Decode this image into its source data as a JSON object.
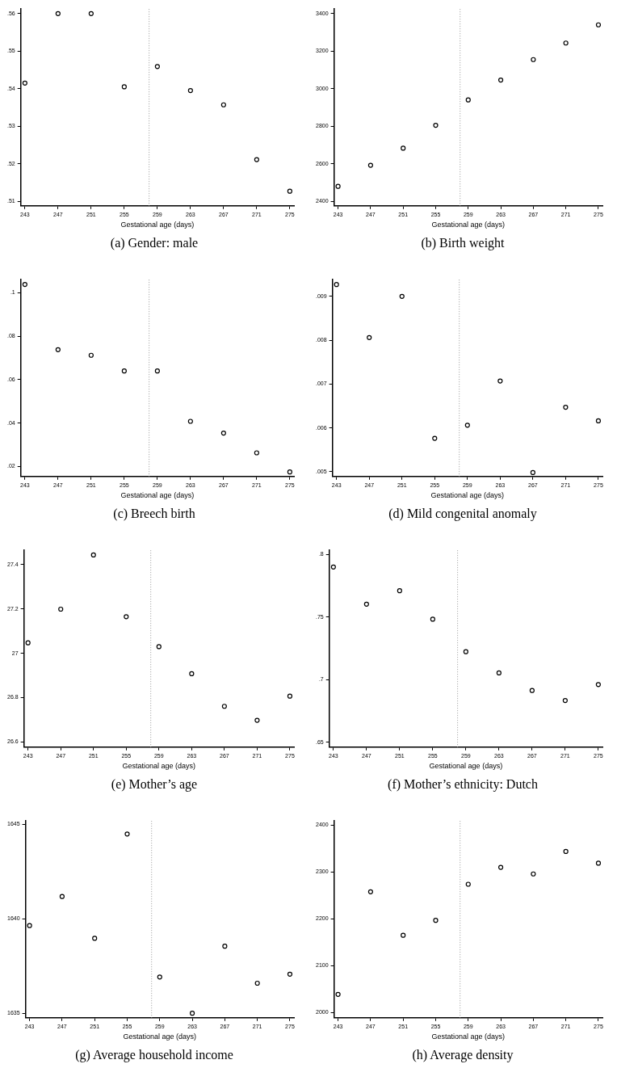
{
  "chart_data": [
    {
      "type": "scatter",
      "title": "(a) Gender: male",
      "xlabel": "Gestational age (days)",
      "x": [
        243,
        247,
        251,
        255,
        259,
        263,
        267,
        271,
        275
      ],
      "values": [
        0.5415,
        0.56,
        0.56,
        0.5405,
        0.5459,
        0.5395,
        0.5357,
        0.5211,
        0.5127
      ],
      "color": "#000000",
      "marker": "circle",
      "grid": false,
      "xlim": [
        242.5,
        275.5
      ],
      "xticks": [
        243,
        247,
        251,
        255,
        259,
        263,
        267,
        271,
        275
      ],
      "ylim": [
        0.5088,
        0.5612
      ],
      "yticks": [
        {
          "value": 0.51,
          "label": ".51"
        },
        {
          "value": 0.52,
          "label": ".52"
        },
        {
          "value": 0.53,
          "label": ".53"
        },
        {
          "value": 0.54,
          "label": ".54"
        },
        {
          "value": 0.55,
          "label": ".55"
        },
        {
          "value": 0.56,
          "label": ".56"
        }
      ],
      "ref_lines": [
        {
          "axis": "x",
          "value": 258,
          "color": "#999999",
          "line_style": "dotted"
        }
      ]
    },
    {
      "type": "scatter",
      "title": "(b) Birth weight",
      "xlabel": "Gestational age (days)",
      "x": [
        243,
        247,
        251,
        255,
        259,
        263,
        267,
        271,
        275
      ],
      "values": [
        2480,
        2592,
        2683,
        2805,
        2940,
        3046,
        3155,
        3243,
        3340
      ],
      "color": "#000000",
      "marker": "circle",
      "grid": false,
      "xlim": [
        242.5,
        275.5
      ],
      "xticks": [
        243,
        247,
        251,
        255,
        259,
        263,
        267,
        271,
        275
      ],
      "ylim": [
        2376,
        3424
      ],
      "yticks": [
        2400,
        2600,
        2800,
        3000,
        3200,
        3400
      ],
      "ref_lines": [
        {
          "axis": "x",
          "value": 258,
          "color": "#999999",
          "line_style": "dotted"
        }
      ]
    },
    {
      "type": "scatter",
      "title": "(c) Breech birth",
      "xlabel": "Gestational age (days)",
      "x": [
        243,
        247,
        251,
        255,
        259,
        263,
        267,
        271,
        275
      ],
      "values": [
        0.1038,
        0.0738,
        0.0712,
        0.064,
        0.064,
        0.0408,
        0.0354,
        0.0263,
        0.0175
      ],
      "color": "#000000",
      "marker": "circle",
      "grid": false,
      "xlim": [
        242.5,
        275.5
      ],
      "xticks": [
        243,
        247,
        251,
        255,
        259,
        263,
        267,
        271,
        275
      ],
      "ylim": [
        0.0154,
        0.106
      ],
      "yticks": [
        {
          "value": 0.02,
          "label": ".02"
        },
        {
          "value": 0.04,
          "label": ".04"
        },
        {
          "value": 0.06,
          "label": ".06"
        },
        {
          "value": 0.08,
          "label": ".08"
        },
        {
          "value": 0.1,
          "label": ".1"
        }
      ],
      "ref_lines": [
        {
          "axis": "x",
          "value": 258,
          "color": "#999999",
          "line_style": "dotted"
        }
      ]
    },
    {
      "type": "scatter",
      "title": "(d) Mild congenital anomaly",
      "xlabel": "Gestational age (days)",
      "x": [
        243,
        247,
        251,
        255,
        259,
        263,
        267,
        271,
        275
      ],
      "values": [
        0.00927,
        0.00806,
        0.009,
        0.00576,
        0.00606,
        0.00707,
        0.00498,
        0.00647,
        0.00616
      ],
      "color": "#000000",
      "marker": "circle",
      "grid": false,
      "xlim": [
        242.5,
        275.5
      ],
      "xticks": [
        243,
        247,
        251,
        255,
        259,
        263,
        267,
        271,
        275
      ],
      "ylim": [
        0.00489,
        0.00938
      ],
      "yticks": [
        {
          "value": 0.005,
          "label": ".005"
        },
        {
          "value": 0.006,
          "label": ".006"
        },
        {
          "value": 0.007,
          "label": ".007"
        },
        {
          "value": 0.008,
          "label": ".008"
        },
        {
          "value": 0.009,
          "label": ".009"
        }
      ],
      "ref_lines": [
        {
          "axis": "x",
          "value": 258,
          "color": "#999999",
          "line_style": "dotted"
        }
      ]
    },
    {
      "type": "scatter",
      "title": "(e) Mother’s age",
      "xlabel": "Gestational age (days)",
      "x": [
        243,
        247,
        251,
        255,
        259,
        263,
        267,
        271,
        275
      ],
      "values": [
        27.047,
        27.199,
        27.443,
        27.165,
        27.03,
        26.908,
        26.761,
        26.698,
        26.807
      ],
      "color": "#000000",
      "marker": "circle",
      "grid": false,
      "xlim": [
        242.5,
        275.5
      ],
      "xticks": [
        243,
        247,
        251,
        255,
        259,
        263,
        267,
        271,
        275
      ],
      "ylim": [
        26.577,
        27.464
      ],
      "yticks": [
        26.6,
        26.8,
        27,
        27.2,
        27.4
      ],
      "ref_lines": [
        {
          "axis": "x",
          "value": 258,
          "color": "#999999",
          "line_style": "dotted"
        }
      ]
    },
    {
      "type": "scatter",
      "title": "(f) Mother’s ethnicity: Dutch",
      "xlabel": "Gestational age (days)",
      "x": [
        243,
        247,
        251,
        255,
        259,
        263,
        267,
        271,
        275
      ],
      "values": [
        0.79,
        0.7603,
        0.771,
        0.7483,
        0.7223,
        0.7053,
        0.6913,
        0.6833,
        0.696
      ],
      "color": "#000000",
      "marker": "circle",
      "grid": false,
      "xlim": [
        242.5,
        275.5
      ],
      "xticks": [
        243,
        247,
        251,
        255,
        259,
        263,
        267,
        271,
        275
      ],
      "ylim": [
        0.646,
        0.8033
      ],
      "yticks": [
        {
          "value": 0.65,
          "label": ".65"
        },
        {
          "value": 0.7,
          "label": ".7"
        },
        {
          "value": 0.75,
          "label": ".75"
        },
        {
          "value": 0.8,
          "label": ".8"
        }
      ],
      "ref_lines": [
        {
          "axis": "x",
          "value": 258,
          "color": "#999999",
          "line_style": "dotted"
        }
      ]
    },
    {
      "type": "scatter",
      "title": "(g) Average household income",
      "xlabel": "Gestational age (days)",
      "x": [
        243,
        247,
        251,
        255,
        259,
        263,
        267,
        271,
        275
      ],
      "values": [
        1639.64,
        1641.18,
        1638.97,
        1644.49,
        1636.92,
        1635.0,
        1638.55,
        1636.59,
        1637.07
      ],
      "color": "#000000",
      "marker": "circle",
      "grid": false,
      "xlim": [
        242.5,
        275.5
      ],
      "xticks": [
        243,
        247,
        251,
        255,
        259,
        263,
        267,
        271,
        275
      ],
      "ylim": [
        1634.76,
        1645.18
      ],
      "yticks": [
        1635,
        1640,
        1645
      ],
      "ref_lines": [
        {
          "axis": "x",
          "value": 258,
          "color": "#999999",
          "line_style": "dotted"
        }
      ]
    },
    {
      "type": "scatter",
      "title": "(h) Average density",
      "xlabel": "Gestational age (days)",
      "x": [
        243,
        247,
        251,
        255,
        259,
        263,
        267,
        271,
        275
      ],
      "values": [
        2039,
        2258,
        2165,
        2197,
        2274,
        2310,
        2296,
        2344,
        2319
      ],
      "color": "#000000",
      "marker": "circle",
      "grid": false,
      "xlim": [
        242.5,
        275.5
      ],
      "xticks": [
        243,
        247,
        251,
        255,
        259,
        263,
        267,
        271,
        275
      ],
      "ylim": [
        1989,
        2409
      ],
      "yticks": [
        2000,
        2100,
        2200,
        2300,
        2400
      ],
      "ref_lines": [
        {
          "axis": "x",
          "value": 258,
          "color": "#999999",
          "line_style": "dotted"
        }
      ]
    }
  ]
}
